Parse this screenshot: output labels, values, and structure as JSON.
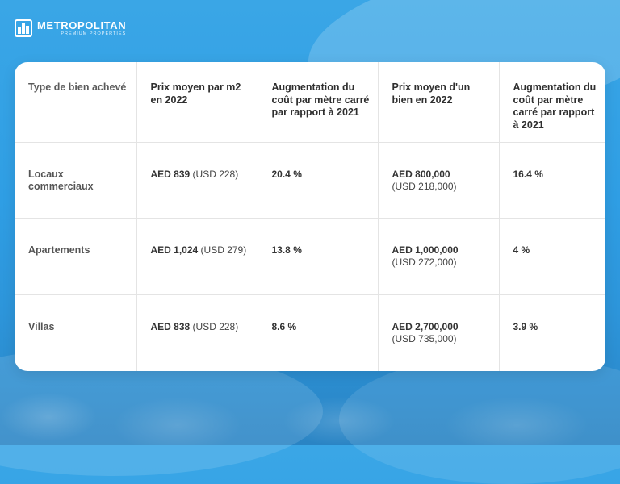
{
  "brand": {
    "name": "METROPOLITAN",
    "tagline": "PREMIUM PROPERTIES"
  },
  "table": {
    "headers": [
      "Type de bien achevé",
      "Prix moyen par m2 en 2022",
      "Augmentation du coût par mètre carré par rapport à 2021",
      "Prix moyen d'un bien en 2022",
      "Augmentation du coût par mètre carré par rapport à 2021"
    ],
    "rows": [
      {
        "type": "Locaux commerciaux",
        "price_m2_aed": "AED 839",
        "price_m2_usd": "(USD 228)",
        "increase_m2": "20.4 %",
        "price_unit_aed": "AED 800,000",
        "price_unit_usd": "(USD 218,000)",
        "increase_unit": "16.4 %"
      },
      {
        "type": "Apartements",
        "price_m2_aed": "AED 1,024",
        "price_m2_usd": "(USD 279)",
        "increase_m2": "13.8 %",
        "price_unit_aed": "AED 1,000,000",
        "price_unit_usd": "(USD 272,000)",
        "increase_unit": "4 %"
      },
      {
        "type": "Villas",
        "price_m2_aed": "AED 838",
        "price_m2_usd": "(USD 228)",
        "increase_m2": "8.6 %",
        "price_unit_aed": "AED 2,700,000",
        "price_unit_usd": "(USD 735,000)",
        "increase_unit": "3.9 %"
      }
    ]
  }
}
